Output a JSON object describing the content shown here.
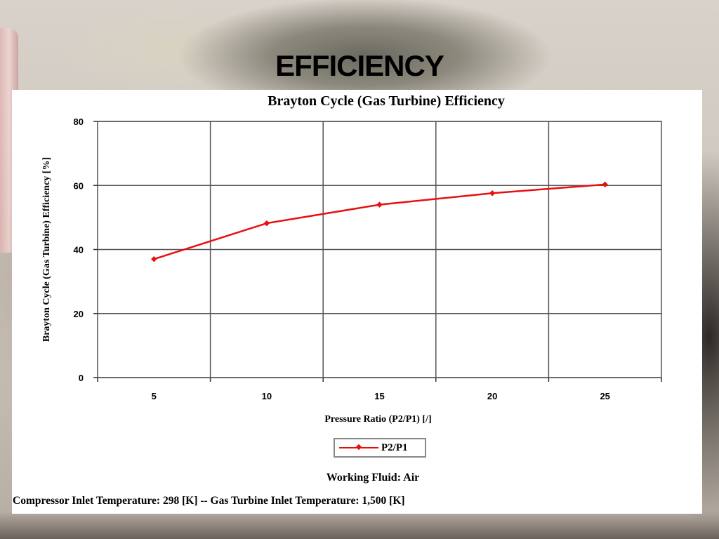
{
  "slide": {
    "title": "EFFICIENCY"
  },
  "chart_data": {
    "type": "line",
    "title": "Brayton Cycle (Gas Turbine) Efficiency",
    "xlabel": "Pressure Ratio (P2/P1) [/]",
    "ylabel": "Brayton Cycle (Gas Turbine) Efficiency [%]",
    "x_ticks": [
      "5",
      "10",
      "15",
      "20",
      "25"
    ],
    "y_ticks": [
      "0",
      "20",
      "40",
      "60",
      "80"
    ],
    "ylim": [
      0,
      80
    ],
    "xlim": [
      2.5,
      27.5
    ],
    "grid": true,
    "legend_position": "bottom",
    "series": [
      {
        "name": "P2/P1",
        "color": "#e8100f",
        "x": [
          5,
          10,
          15,
          20,
          25
        ],
        "y": [
          37.0,
          48.2,
          54.0,
          57.6,
          60.3
        ]
      }
    ],
    "annotations": {
      "working_fluid": "Working Fluid:   Air",
      "inlet_temperatures": "Compressor Inlet Temperature:  298 [K]  --  Gas Turbine Inlet Temperature:  1,500 [K]"
    }
  }
}
